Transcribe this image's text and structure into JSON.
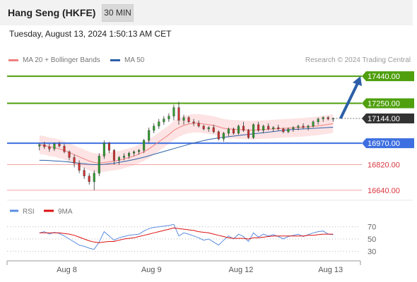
{
  "header": {
    "title": "Hang Seng (HKFE)",
    "interval": "30 MIN"
  },
  "timestamp": "Tuesday, August 13, 2024 1:50:13 AM CET",
  "legend": {
    "ma20_label": "MA 20 + Bollinger Bands",
    "ma50_label": "MA 50",
    "credit": "Research © 2024 Trading Central"
  },
  "colors": {
    "green": "#4f9f0e",
    "blue": "#3d6fe0",
    "red": "#d9363e",
    "band": "#fde3e3",
    "ma20": "#f08080",
    "ma50": "#2c5fa8",
    "arrow": "#2c5fa8",
    "current": "#333333",
    "rsi": "#5b8de0",
    "rsi_ma": "#dd1111"
  },
  "chart_data": [
    {
      "type": "candlestick",
      "title": "Hang Seng (HKFE)",
      "ylim": [
        16600,
        17480
      ],
      "x_ticks": [
        "Aug 8",
        "Aug 9",
        "Aug 12",
        "Aug 13"
      ],
      "x_tick_pos": [
        5.5,
        22.5,
        40.5,
        58.5
      ],
      "x_range": [
        -6.5,
        64.5
      ],
      "series_ohlc": [
        [
          16950,
          16970,
          16920,
          16960
        ],
        [
          16960,
          16980,
          16930,
          16945
        ],
        [
          16945,
          16965,
          16910,
          16930
        ],
        [
          16930,
          16975,
          16915,
          16965
        ],
        [
          16965,
          16980,
          16940,
          16950
        ],
        [
          16950,
          16965,
          16900,
          16910
        ],
        [
          16910,
          16920,
          16850,
          16870
        ],
        [
          16870,
          16890,
          16800,
          16830
        ],
        [
          16830,
          16850,
          16760,
          16780
        ],
        [
          16780,
          16800,
          16720,
          16740
        ],
        [
          16740,
          16760,
          16680,
          16700
        ],
        [
          16700,
          16780,
          16640,
          16760
        ],
        [
          16760,
          16900,
          16740,
          16880
        ],
        [
          16880,
          16990,
          16860,
          16970
        ],
        [
          16970,
          16980,
          16900,
          16920
        ],
        [
          16920,
          16930,
          16820,
          16850
        ],
        [
          16850,
          16880,
          16820,
          16870
        ],
        [
          16870,
          16900,
          16850,
          16880
        ],
        [
          16880,
          16910,
          16860,
          16900
        ],
        [
          16900,
          16920,
          16880,
          16910
        ],
        [
          16910,
          16930,
          16890,
          16920
        ],
        [
          16920,
          17000,
          16900,
          16990
        ],
        [
          16990,
          17080,
          16970,
          17060
        ],
        [
          17060,
          17110,
          17040,
          17090
        ],
        [
          17090,
          17140,
          17070,
          17120
        ],
        [
          17120,
          17160,
          17100,
          17140
        ],
        [
          17140,
          17180,
          17120,
          17160
        ],
        [
          17160,
          17240,
          17130,
          17220
        ],
        [
          17220,
          17260,
          17100,
          17130
        ],
        [
          17130,
          17170,
          17100,
          17150
        ],
        [
          17150,
          17160,
          17110,
          17120
        ],
        [
          17120,
          17140,
          17090,
          17110
        ],
        [
          17110,
          17130,
          17080,
          17090
        ],
        [
          17090,
          17100,
          17060,
          17070
        ],
        [
          17070,
          17090,
          17050,
          17080
        ],
        [
          17080,
          17100,
          17040,
          17050
        ],
        [
          17050,
          17060,
          16990,
          17000
        ],
        [
          17000,
          17050,
          16980,
          17040
        ],
        [
          17040,
          17080,
          17020,
          17070
        ],
        [
          17070,
          17080,
          17030,
          17040
        ],
        [
          17040,
          17100,
          17030,
          17090
        ],
        [
          17090,
          17120,
          17050,
          17060
        ],
        [
          17060,
          17070,
          17000,
          17010
        ],
        [
          17010,
          17110,
          17000,
          17100
        ],
        [
          17100,
          17120,
          17050,
          17060
        ],
        [
          17060,
          17100,
          17040,
          17090
        ],
        [
          17090,
          17110,
          17060,
          17070
        ],
        [
          17070,
          17090,
          17050,
          17080
        ],
        [
          17080,
          17100,
          17060,
          17070
        ],
        [
          17070,
          17080,
          17040,
          17050
        ],
        [
          17050,
          17080,
          17040,
          17070
        ],
        [
          17070,
          17090,
          17050,
          17080
        ],
        [
          17080,
          17100,
          17060,
          17090
        ],
        [
          17090,
          17110,
          17070,
          17080
        ],
        [
          17080,
          17100,
          17060,
          17090
        ],
        [
          17090,
          17130,
          17080,
          17120
        ],
        [
          17120,
          17150,
          17100,
          17140
        ],
        [
          17140,
          17160,
          17120,
          17150
        ],
        [
          17150,
          17160,
          17130,
          17140
        ],
        [
          17140,
          17150,
          17120,
          17144
        ]
      ],
      "ma20": [
        16960,
        16955,
        16945,
        16940,
        16930,
        16920,
        16905,
        16890,
        16875,
        16860,
        16845,
        16835,
        16830,
        16835,
        16840,
        16845,
        16850,
        16860,
        16870,
        16880,
        16895,
        16910,
        16930,
        16955,
        16980,
        17005,
        17030,
        17060,
        17080,
        17095,
        17105,
        17110,
        17110,
        17105,
        17100,
        17095,
        17085,
        17075,
        17070,
        17068,
        17066,
        17064,
        17063,
        17062,
        17064,
        17066,
        17068,
        17070,
        17072,
        17074,
        17076,
        17078,
        17080,
        17082,
        17085,
        17088,
        17092,
        17097,
        17102,
        17108
      ],
      "ma50": [
        16850,
        16850,
        16848,
        16846,
        16844,
        16842,
        16838,
        16834,
        16830,
        16826,
        16822,
        16820,
        16820,
        16822,
        16826,
        16830,
        16836,
        16842,
        16848,
        16856,
        16864,
        16872,
        16882,
        16892,
        16902,
        16912,
        16922,
        16932,
        16942,
        16952,
        16962,
        16972,
        16980,
        16988,
        16996,
        17002,
        17008,
        17012,
        17016,
        17020,
        17024,
        17028,
        17032,
        17036,
        17040,
        17044,
        17048,
        17052,
        17056,
        17060,
        17064,
        17066,
        17068,
        17070,
        17072,
        17074,
        17076,
        17078,
        17080,
        17082
      ],
      "bb_width": 65,
      "levels": [
        {
          "value": 17440.0,
          "label": "17440.00",
          "kind": "resistance"
        },
        {
          "value": 17250.0,
          "label": "17250.00",
          "kind": "resistance"
        },
        {
          "value": 17144.0,
          "label": "17144.00",
          "kind": "current"
        },
        {
          "value": 16970.0,
          "label": "16970.00",
          "kind": "pivot"
        },
        {
          "value": 16820.0,
          "label": "16820.00",
          "kind": "support"
        },
        {
          "value": 16640.0,
          "label": "16640.00",
          "kind": "support"
        }
      ],
      "arrow": {
        "from": [
          60.5,
          17144
        ],
        "to": [
          64.5,
          17440
        ]
      }
    },
    {
      "type": "line",
      "title": "RSI",
      "ylim": [
        20,
        80
      ],
      "ticks": [
        70,
        50,
        30
      ],
      "series": [
        {
          "name": "RSI",
          "values": [
            60,
            62,
            58,
            61,
            59,
            55,
            50,
            45,
            40,
            38,
            35,
            33,
            45,
            62,
            55,
            48,
            52,
            54,
            56,
            57,
            58,
            63,
            67,
            69,
            70,
            71,
            72,
            74,
            55,
            60,
            58,
            55,
            52,
            48,
            50,
            45,
            40,
            48,
            55,
            50,
            58,
            54,
            46,
            60,
            53,
            58,
            55,
            57,
            54,
            50,
            54,
            56,
            58,
            54,
            57,
            60,
            62,
            63,
            58,
            57
          ]
        },
        {
          "name": "9MA",
          "values": [
            60,
            60,
            60,
            60,
            60,
            59,
            58,
            56,
            53,
            50,
            47,
            45,
            44,
            45,
            46,
            46,
            48,
            50,
            51,
            52,
            54,
            56,
            58,
            60,
            62,
            64,
            66,
            68,
            67,
            66,
            65,
            64,
            62,
            61,
            60,
            58,
            56,
            54,
            52,
            51,
            51,
            51,
            50,
            52,
            52,
            53,
            54,
            55,
            55,
            55,
            55,
            55,
            55,
            55,
            56,
            56,
            57,
            58,
            58,
            58
          ]
        }
      ]
    }
  ]
}
